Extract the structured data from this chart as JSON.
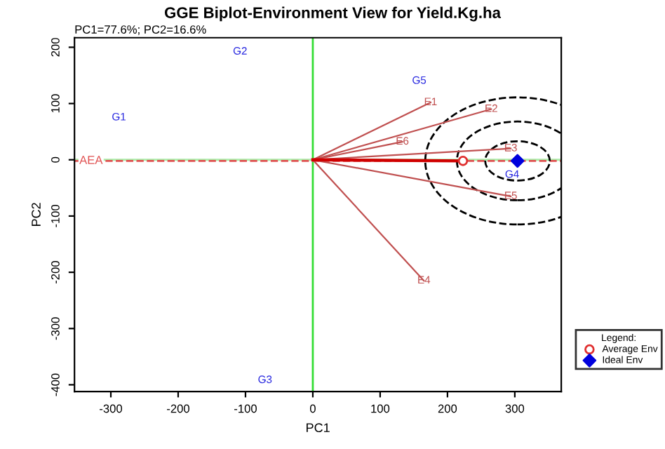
{
  "chart_data": {
    "type": "scatter",
    "title": "GGE Biplot-Environment View for Yield.Kg.ha",
    "subtitle": "PC1=77.6%; PC2=16.6%",
    "xlabel": "PC1",
    "ylabel": "PC2",
    "legend_title": "Legend:",
    "xlim": [
      -354,
      369
    ],
    "ylim": [
      -412,
      217
    ],
    "xticks": [
      -300,
      -200,
      -100,
      0,
      100,
      200,
      300
    ],
    "yticks": [
      -400,
      -300,
      -200,
      -100,
      0,
      100,
      200
    ],
    "grid": false,
    "legend": "bottom right",
    "ref_lines": [
      {
        "axis": "x",
        "value": 0,
        "color": "#33dd33",
        "line_style": "solid"
      },
      {
        "axis": "y",
        "value": 0,
        "color": "#aaeeaa",
        "line_style": "solid"
      },
      {
        "axis": "y",
        "value": -2,
        "label": "AEA",
        "color": "#e05050",
        "line_style": "dashed"
      }
    ],
    "annotations": [
      {
        "text": "E1",
        "x": 175,
        "y": 102
      },
      {
        "text": "E2",
        "x": 265,
        "y": 90
      },
      {
        "text": "E3",
        "x": 294,
        "y": 20
      },
      {
        "text": "E4",
        "x": 165,
        "y": -215
      },
      {
        "text": "E5",
        "x": 294,
        "y": -65
      },
      {
        "text": "E6",
        "x": 133,
        "y": 32
      }
    ],
    "series": [
      {
        "type": "line",
        "color": "#c05050",
        "x": [
          0,
          175
        ],
        "values": [
          0,
          102
        ]
      },
      {
        "type": "line",
        "color": "#c05050",
        "x": [
          0,
          265
        ],
        "values": [
          0,
          90
        ]
      },
      {
        "type": "line",
        "color": "#c05050",
        "x": [
          0,
          294
        ],
        "values": [
          0,
          20
        ]
      },
      {
        "type": "line",
        "color": "#c05050",
        "x": [
          0,
          165
        ],
        "values": [
          0,
          -215
        ]
      },
      {
        "type": "line",
        "color": "#c05050",
        "x": [
          0,
          294
        ],
        "values": [
          0,
          -65
        ]
      },
      {
        "type": "line",
        "color": "#c05050",
        "x": [
          0,
          133
        ],
        "values": [
          0,
          32
        ]
      },
      {
        "type": "line",
        "color": "#d00000",
        "x": [
          0,
          223
        ],
        "values": [
          0,
          -2
        ]
      },
      {
        "marker": "none",
        "color": "#2a2ae0",
        "x": [
          -288,
          -108,
          -71,
          296,
          158
        ],
        "values": [
          75,
          192,
          -392,
          -27,
          140
        ],
        "value_labels": [
          "G1",
          "G2",
          "G3",
          "G4",
          "G5"
        ]
      },
      {
        "marker": "circle",
        "name": "Average Env",
        "color": "#e03030",
        "x": [
          223
        ],
        "values": [
          -2
        ]
      },
      {
        "marker": "diamond",
        "name": "Ideal Env",
        "color": "#0000dd",
        "x": [
          304
        ],
        "values": [
          -2
        ]
      }
    ]
  }
}
